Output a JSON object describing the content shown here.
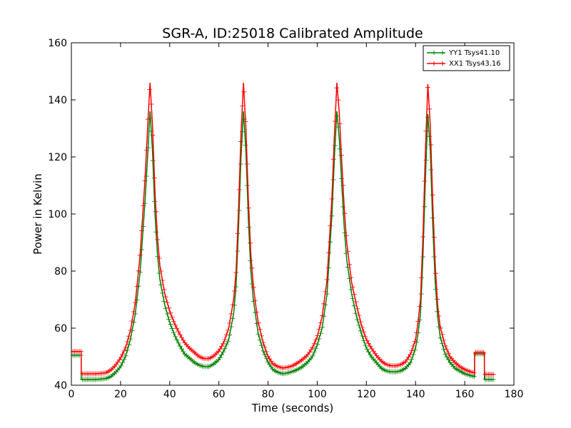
{
  "chart_data": {
    "type": "line",
    "title": "SGR-A, ID:25018 Calibrated Amplitude",
    "xlabel": "Time (seconds)",
    "ylabel": "Power in Kelvin",
    "xlim": [
      0,
      180
    ],
    "ylim": [
      40,
      160
    ],
    "xticks": [
      0,
      20,
      40,
      60,
      80,
      100,
      120,
      140,
      160,
      180
    ],
    "yticks": [
      40,
      60,
      80,
      100,
      120,
      140,
      160
    ],
    "grid": false,
    "legend_position": "top-right",
    "marker": "plus",
    "series": [
      {
        "name": "YY1 Tsys41.10",
        "color": "#008000",
        "points": [
          [
            0,
            50.5
          ],
          [
            4,
            50.5
          ],
          [
            4.01,
            42
          ],
          [
            10,
            42
          ],
          [
            14,
            42.3
          ],
          [
            16,
            43
          ],
          [
            18,
            44.5
          ],
          [
            20,
            46.5
          ],
          [
            22,
            50
          ],
          [
            24,
            56
          ],
          [
            26,
            65
          ],
          [
            28,
            80
          ],
          [
            30,
            105
          ],
          [
            31,
            120
          ],
          [
            32,
            136
          ],
          [
            33,
            122
          ],
          [
            34,
            100
          ],
          [
            35,
            86
          ],
          [
            36,
            77
          ],
          [
            38,
            68
          ],
          [
            40,
            62
          ],
          [
            42,
            57.5
          ],
          [
            44,
            54
          ],
          [
            46,
            51
          ],
          [
            48,
            49.5
          ],
          [
            50,
            48
          ],
          [
            52,
            47
          ],
          [
            54,
            46.5
          ],
          [
            56,
            46.5
          ],
          [
            58,
            47.5
          ],
          [
            60,
            49
          ],
          [
            62,
            52
          ],
          [
            64,
            56
          ],
          [
            66,
            65
          ],
          [
            67,
            75
          ],
          [
            68,
            95
          ],
          [
            69,
            120
          ],
          [
            70,
            136
          ],
          [
            71,
            122
          ],
          [
            72,
            98
          ],
          [
            73,
            80
          ],
          [
            74,
            70
          ],
          [
            75,
            64
          ],
          [
            76,
            58
          ],
          [
            78,
            52
          ],
          [
            80,
            48
          ],
          [
            82,
            45.5
          ],
          [
            84,
            44.5
          ],
          [
            86,
            44
          ],
          [
            88,
            44.3
          ],
          [
            90,
            44.8
          ],
          [
            92,
            45.5
          ],
          [
            94,
            46.5
          ],
          [
            96,
            48
          ],
          [
            98,
            50
          ],
          [
            100,
            54
          ],
          [
            102,
            60
          ],
          [
            104,
            72
          ],
          [
            106,
            100
          ],
          [
            107,
            120
          ],
          [
            108,
            136
          ],
          [
            109,
            126
          ],
          [
            110,
            110
          ],
          [
            111,
            95
          ],
          [
            112,
            84
          ],
          [
            114,
            72
          ],
          [
            116,
            64
          ],
          [
            118,
            58
          ],
          [
            120,
            53
          ],
          [
            122,
            50
          ],
          [
            124,
            48
          ],
          [
            126,
            46
          ],
          [
            128,
            45
          ],
          [
            130,
            44.7
          ],
          [
            132,
            44.7
          ],
          [
            134,
            45
          ],
          [
            136,
            46
          ],
          [
            138,
            48
          ],
          [
            140,
            53
          ],
          [
            141,
            58
          ],
          [
            142,
            65
          ],
          [
            143,
            85
          ],
          [
            144,
            112
          ],
          [
            145,
            135
          ],
          [
            146,
            122
          ],
          [
            147,
            96
          ],
          [
            148,
            76
          ],
          [
            149,
            64
          ],
          [
            150,
            57
          ],
          [
            152,
            51
          ],
          [
            154,
            48
          ],
          [
            156,
            46
          ],
          [
            158,
            45
          ],
          [
            160,
            44
          ],
          [
            162,
            43.5
          ],
          [
            164,
            43
          ],
          [
            164.01,
            51
          ],
          [
            168,
            51
          ],
          [
            168.01,
            42
          ],
          [
            172,
            42
          ]
        ]
      },
      {
        "name": "XX1 Tsys43.16",
        "color": "#ff0000",
        "points": [
          [
            0,
            51.8
          ],
          [
            4,
            51.8
          ],
          [
            4.01,
            44
          ],
          [
            10,
            44
          ],
          [
            14,
            44.3
          ],
          [
            16,
            45.3
          ],
          [
            18,
            47
          ],
          [
            20,
            49.5
          ],
          [
            22,
            53
          ],
          [
            24,
            59
          ],
          [
            26,
            69
          ],
          [
            28,
            86
          ],
          [
            30,
            113
          ],
          [
            31,
            130
          ],
          [
            32,
            146
          ],
          [
            33,
            131
          ],
          [
            34,
            108
          ],
          [
            35,
            92
          ],
          [
            36,
            82
          ],
          [
            38,
            72
          ],
          [
            40,
            66
          ],
          [
            42,
            61.5
          ],
          [
            44,
            58
          ],
          [
            46,
            55
          ],
          [
            48,
            53
          ],
          [
            50,
            51.5
          ],
          [
            52,
            50
          ],
          [
            54,
            49.3
          ],
          [
            56,
            49.3
          ],
          [
            58,
            50.3
          ],
          [
            60,
            52
          ],
          [
            62,
            55
          ],
          [
            64,
            60
          ],
          [
            66,
            70
          ],
          [
            67,
            80
          ],
          [
            68,
            102
          ],
          [
            69,
            128
          ],
          [
            70,
            146
          ],
          [
            71,
            130
          ],
          [
            72,
            105
          ],
          [
            73,
            86
          ],
          [
            74,
            75
          ],
          [
            75,
            68
          ],
          [
            76,
            62
          ],
          [
            78,
            55
          ],
          [
            80,
            50
          ],
          [
            82,
            47.5
          ],
          [
            84,
            46.5
          ],
          [
            86,
            46
          ],
          [
            88,
            46.3
          ],
          [
            90,
            46.8
          ],
          [
            92,
            47.8
          ],
          [
            94,
            49
          ],
          [
            96,
            50.5
          ],
          [
            98,
            53
          ],
          [
            100,
            57
          ],
          [
            102,
            64
          ],
          [
            104,
            77
          ],
          [
            106,
            106
          ],
          [
            107,
            128
          ],
          [
            108,
            146
          ],
          [
            109,
            135
          ],
          [
            110,
            118
          ],
          [
            111,
            102
          ],
          [
            112,
            90
          ],
          [
            114,
            76
          ],
          [
            116,
            68
          ],
          [
            118,
            61
          ],
          [
            120,
            56
          ],
          [
            122,
            53
          ],
          [
            124,
            50.5
          ],
          [
            126,
            48.5
          ],
          [
            128,
            47.3
          ],
          [
            130,
            46.8
          ],
          [
            132,
            46.8
          ],
          [
            134,
            47.2
          ],
          [
            136,
            48.3
          ],
          [
            138,
            51
          ],
          [
            140,
            56
          ],
          [
            141,
            62
          ],
          [
            142,
            70
          ],
          [
            143,
            92
          ],
          [
            144,
            122
          ],
          [
            145,
            145.5
          ],
          [
            146,
            131
          ],
          [
            147,
            104
          ],
          [
            148,
            82
          ],
          [
            149,
            68
          ],
          [
            150,
            60.5
          ],
          [
            152,
            54
          ],
          [
            154,
            50
          ],
          [
            156,
            48
          ],
          [
            158,
            46.5
          ],
          [
            160,
            45.5
          ],
          [
            162,
            44.8
          ],
          [
            164,
            44.3
          ],
          [
            164.01,
            51.5
          ],
          [
            168,
            51.5
          ],
          [
            168.01,
            43.8
          ],
          [
            172,
            43.8
          ]
        ]
      }
    ]
  }
}
